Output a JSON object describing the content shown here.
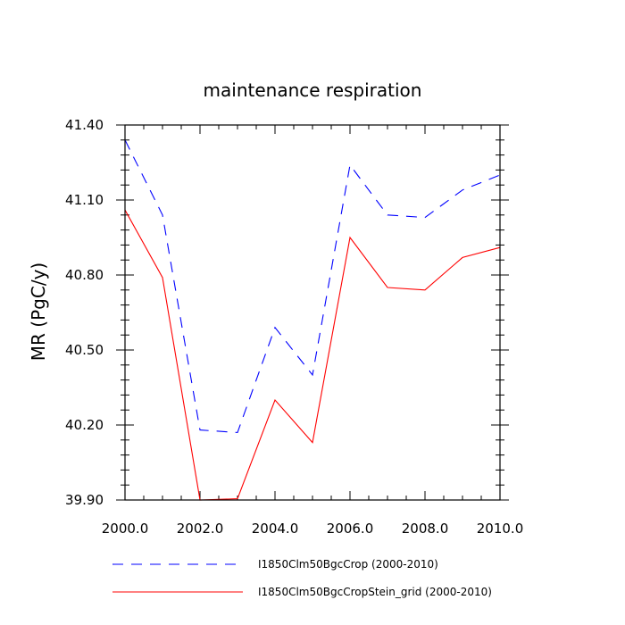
{
  "chart_data": {
    "type": "line",
    "title": "maintenance respiration",
    "xlabel": "",
    "ylabel": "MR  (PgC/y)",
    "xlim": [
      2000,
      2010
    ],
    "ylim": [
      39.9,
      41.4
    ],
    "xticks": [
      2000,
      2002,
      2004,
      2006,
      2008,
      2010
    ],
    "xtick_labels": [
      "2000.0",
      "2002.0",
      "2004.0",
      "2006.0",
      "2008.0",
      "2010.0"
    ],
    "yticks": [
      39.9,
      40.2,
      40.5,
      40.8,
      41.1,
      41.4
    ],
    "ytick_labels": [
      "39.90",
      "40.20",
      "40.50",
      "40.80",
      "41.10",
      "41.40"
    ],
    "x": [
      2000,
      2001,
      2002,
      2003,
      2004,
      2005,
      2006,
      2007,
      2008,
      2009,
      2010
    ],
    "grid": false,
    "legend_position": "bottom",
    "series": [
      {
        "name": "I1850Clm50BgcCrop (2000-2010)",
        "color": "#0000ff",
        "style": "dashed",
        "values": [
          41.34,
          41.04,
          40.18,
          40.17,
          40.59,
          40.4,
          41.24,
          41.04,
          41.03,
          41.14,
          41.2
        ]
      },
      {
        "name": "I1850Clm50BgcCropStein_grid (2000-2010)",
        "color": "#ff0000",
        "style": "solid",
        "values": [
          41.06,
          40.79,
          39.9,
          39.905,
          40.3,
          40.13,
          40.95,
          40.75,
          40.74,
          40.87,
          40.91
        ]
      }
    ]
  }
}
